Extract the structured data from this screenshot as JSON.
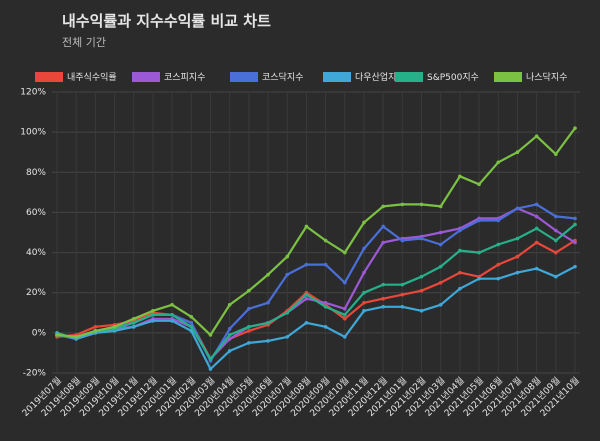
{
  "chart_data": {
    "type": "line",
    "title": "내수익률과 지수수익률 비교 차트",
    "subtitle": "전체 기간",
    "categories": [
      "2019년07월",
      "2019년08월",
      "2019년09월",
      "2019년10월",
      "2019년11월",
      "2019년12월",
      "2020년01월",
      "2020년02월",
      "2020년03월",
      "2020년04월",
      "2020년05월",
      "2020년06월",
      "2020년07월",
      "2020년08월",
      "2020년09월",
      "2020년10월",
      "2020년11월",
      "2020년12월",
      "2021년01월",
      "2021년02월",
      "2021년03월",
      "2021년04월",
      "2021년05월",
      "2021년06월",
      "2021년07월",
      "2021년08월",
      "2021년09월",
      "2021년10월"
    ],
    "series": [
      {
        "name": "내주식수익률",
        "color": "#e8473a",
        "values": [
          -2,
          -1,
          3,
          4,
          6,
          10,
          9,
          5,
          -13,
          -3,
          1,
          4,
          11,
          20,
          14,
          7,
          15,
          17,
          19,
          21,
          25,
          30,
          28,
          34,
          38,
          45,
          40,
          46
        ]
      },
      {
        "name": "코스피지수",
        "color": "#9b59d6",
        "values": [
          -1,
          -3,
          1,
          2,
          3,
          7,
          7,
          3,
          -13,
          -3,
          3,
          5,
          10,
          17,
          15,
          12,
          30,
          45,
          47,
          48,
          50,
          52,
          57,
          57,
          62,
          58,
          51,
          45
        ]
      },
      {
        "name": "코스닥지수",
        "color": "#4a6fd8",
        "values": [
          -1,
          -3,
          0,
          3,
          5,
          9,
          9,
          5,
          -14,
          2,
          12,
          15,
          29,
          34,
          34,
          25,
          42,
          53,
          46,
          47,
          44,
          51,
          56,
          56,
          62,
          64,
          58,
          57
        ]
      },
      {
        "name": "다우산업지수",
        "color": "#3fa8d8",
        "values": [
          0,
          -3,
          0,
          1,
          3,
          6,
          6,
          1,
          -18,
          -9,
          -5,
          -4,
          -2,
          5,
          3,
          -2,
          11,
          13,
          13,
          11,
          14,
          22,
          27,
          27,
          30,
          32,
          28,
          33
        ]
      },
      {
        "name": "S&P500지수",
        "color": "#26b08a",
        "values": [
          -1,
          -2,
          1,
          2,
          5,
          9,
          9,
          3,
          -13,
          -1,
          3,
          5,
          10,
          19,
          13,
          9,
          20,
          24,
          24,
          28,
          33,
          41,
          40,
          44,
          47,
          52,
          46,
          54
        ]
      },
      {
        "name": "나스닥지수",
        "color": "#7cc242",
        "values": [
          -1,
          -2,
          1,
          3,
          7,
          11,
          14,
          8,
          -1,
          14,
          21,
          29,
          38,
          53,
          46,
          40,
          55,
          63,
          64,
          64,
          63,
          78,
          74,
          85,
          90,
          98,
          89,
          102
        ]
      }
    ],
    "ylim": [
      -20,
      120
    ],
    "yticks": [
      {
        "value": -20,
        "label": "-20%"
      },
      {
        "value": 0,
        "label": "0%"
      },
      {
        "value": 20,
        "label": "20%"
      },
      {
        "value": 40,
        "label": "40%"
      },
      {
        "value": 60,
        "label": "60%"
      },
      {
        "value": 80,
        "label": "80%"
      },
      {
        "value": 100,
        "label": "100%"
      },
      {
        "value": 120,
        "label": "120%"
      }
    ],
    "grid": true
  }
}
